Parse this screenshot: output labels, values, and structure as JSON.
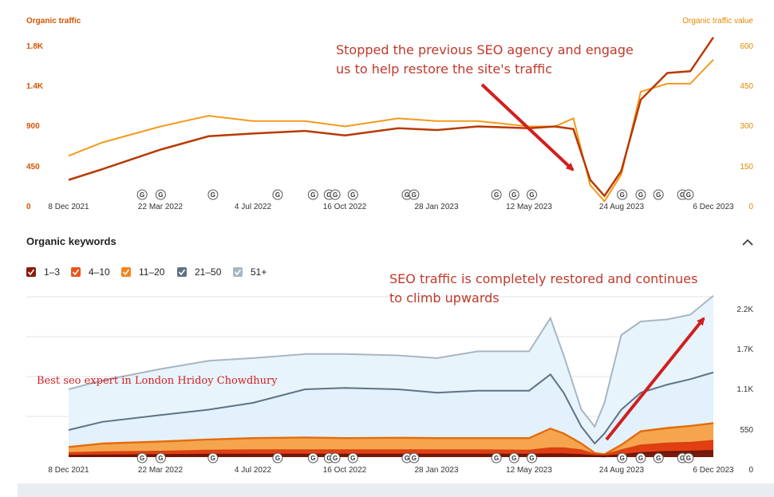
{
  "top_chart": {
    "left_title": "Organic traffic",
    "right_title": "Organic traffic value",
    "left_ticks": [
      "1.8K",
      "1.4K",
      "900",
      "450",
      "0"
    ],
    "right_ticks": [
      "600",
      "450",
      "300",
      "150",
      "0"
    ],
    "x_ticks": [
      "8 Dec 2021",
      "22 Mar 2022",
      "4 Jul 2022",
      "16 Oct 2022",
      "28 Jan 2023",
      "12 May 2023",
      "24 Aug 2023",
      "6 Dec 2023"
    ],
    "annotation_line1": "Stopped the previous SEO agency and engage",
    "annotation_line2": "us to help restore the site's traffic",
    "colors": {
      "traffic": "#b83a00",
      "value": "#f39a1e",
      "axis_label": "#e08a00"
    }
  },
  "keywords_section": {
    "title": "Organic keywords",
    "collapse_icon": "chevron-up-icon",
    "legend": [
      {
        "label": "1–3",
        "color": "#8b1a0a"
      },
      {
        "label": "4–10",
        "color": "#e8541c"
      },
      {
        "label": "11–20",
        "color": "#f5821f"
      },
      {
        "label": "21–50",
        "color": "#5f7283"
      },
      {
        "label": "51+",
        "color": "#a8b6c3"
      }
    ]
  },
  "bottom_chart": {
    "right_ticks": [
      "2.2K",
      "1.7K",
      "1.1K",
      "550",
      "0"
    ],
    "x_ticks": [
      "8 Dec 2021",
      "22 Mar 2022",
      "4 Jul 2022",
      "16 Oct 2022",
      "28 Jan 2023",
      "12 May 2023",
      "24 Aug 2023",
      "6 Dec 2023"
    ],
    "annotation_line1": "SEO traffic is completely restored and continues",
    "annotation_line2": "to climb upwards",
    "watermark": "Best seo expert in London Hridoy Chowdhury"
  },
  "google_update_marker": "G",
  "chart_data": [
    {
      "type": "line",
      "title": "",
      "xlabel": "",
      "ylabel": "Organic traffic",
      "y2label": "Organic traffic value",
      "ylim": [
        0,
        1800
      ],
      "y2lim": [
        0,
        600
      ],
      "x": [
        "2021-12-08",
        "2022-01-15",
        "2022-03-22",
        "2022-05-15",
        "2022-07-04",
        "2022-09-01",
        "2022-10-16",
        "2022-12-15",
        "2023-01-28",
        "2023-03-15",
        "2023-05-12",
        "2023-06-10",
        "2023-07-01",
        "2023-07-20",
        "2023-08-05",
        "2023-08-24",
        "2023-09-15",
        "2023-10-15",
        "2023-11-10",
        "2023-12-06"
      ],
      "series": [
        {
          "name": "Organic traffic",
          "values": [
            300,
            420,
            640,
            790,
            820,
            850,
            800,
            880,
            860,
            900,
            880,
            900,
            870,
            300,
            120,
            400,
            1200,
            1500,
            1520,
            1900
          ]
        },
        {
          "name": "Organic traffic value",
          "values": [
            190,
            240,
            300,
            340,
            320,
            320,
            300,
            330,
            320,
            320,
            300,
            300,
            330,
            80,
            20,
            120,
            430,
            460,
            460,
            550
          ]
        }
      ],
      "google_updates": [
        "2022-03-01",
        "2022-03-22",
        "2022-05-20",
        "2022-08-01",
        "2022-09-10",
        "2022-09-28",
        "2022-10-05",
        "2022-10-25",
        "2022-12-25",
        "2023-01-02",
        "2023-04-05",
        "2023-04-25",
        "2023-05-15",
        "2023-08-25",
        "2023-09-15",
        "2023-10-05",
        "2023-11-01",
        "2023-11-08"
      ]
    },
    {
      "type": "area",
      "title": "",
      "xlabel": "",
      "ylabel": "",
      "ylim": [
        0,
        2200
      ],
      "x": [
        "2021-12-08",
        "2022-01-15",
        "2022-03-22",
        "2022-05-15",
        "2022-07-04",
        "2022-09-01",
        "2022-10-16",
        "2022-12-15",
        "2023-01-28",
        "2023-03-15",
        "2023-05-12",
        "2023-06-05",
        "2023-06-20",
        "2023-07-10",
        "2023-07-25",
        "2023-08-05",
        "2023-08-24",
        "2023-09-15",
        "2023-10-15",
        "2023-11-10",
        "2023-12-06"
      ],
      "series": [
        {
          "name": "1–3",
          "values": [
            20,
            25,
            30,
            35,
            35,
            35,
            35,
            35,
            35,
            35,
            35,
            40,
            40,
            30,
            15,
            10,
            30,
            60,
            75,
            80,
            90
          ]
        },
        {
          "name": "4–10",
          "values": [
            60,
            70,
            80,
            95,
            100,
            100,
            100,
            100,
            100,
            100,
            95,
            130,
            130,
            100,
            40,
            30,
            100,
            170,
            200,
            210,
            240
          ]
        },
        {
          "name": "11–20",
          "values": [
            150,
            200,
            230,
            260,
            280,
            290,
            280,
            285,
            280,
            280,
            280,
            420,
            350,
            200,
            60,
            40,
            180,
            380,
            430,
            460,
            500
          ]
        },
        {
          "name": "21–50",
          "values": [
            400,
            520,
            620,
            700,
            800,
            1000,
            1020,
            1000,
            950,
            980,
            980,
            1220,
            950,
            450,
            200,
            350,
            700,
            950,
            1070,
            1150,
            1250
          ]
        },
        {
          "name": "51+",
          "values": [
            1000,
            1130,
            1300,
            1420,
            1460,
            1520,
            1520,
            1500,
            1460,
            1560,
            1560,
            2050,
            1500,
            700,
            450,
            800,
            1800,
            2000,
            2030,
            2100,
            2380
          ]
        }
      ],
      "google_updates": [
        "2022-03-01",
        "2022-03-22",
        "2022-05-20",
        "2022-08-01",
        "2022-09-10",
        "2022-09-28",
        "2022-10-05",
        "2022-10-25",
        "2022-12-25",
        "2023-01-02",
        "2023-04-05",
        "2023-04-25",
        "2023-05-15",
        "2023-08-25",
        "2023-09-15",
        "2023-10-05",
        "2023-11-01",
        "2023-11-08"
      ]
    }
  ]
}
